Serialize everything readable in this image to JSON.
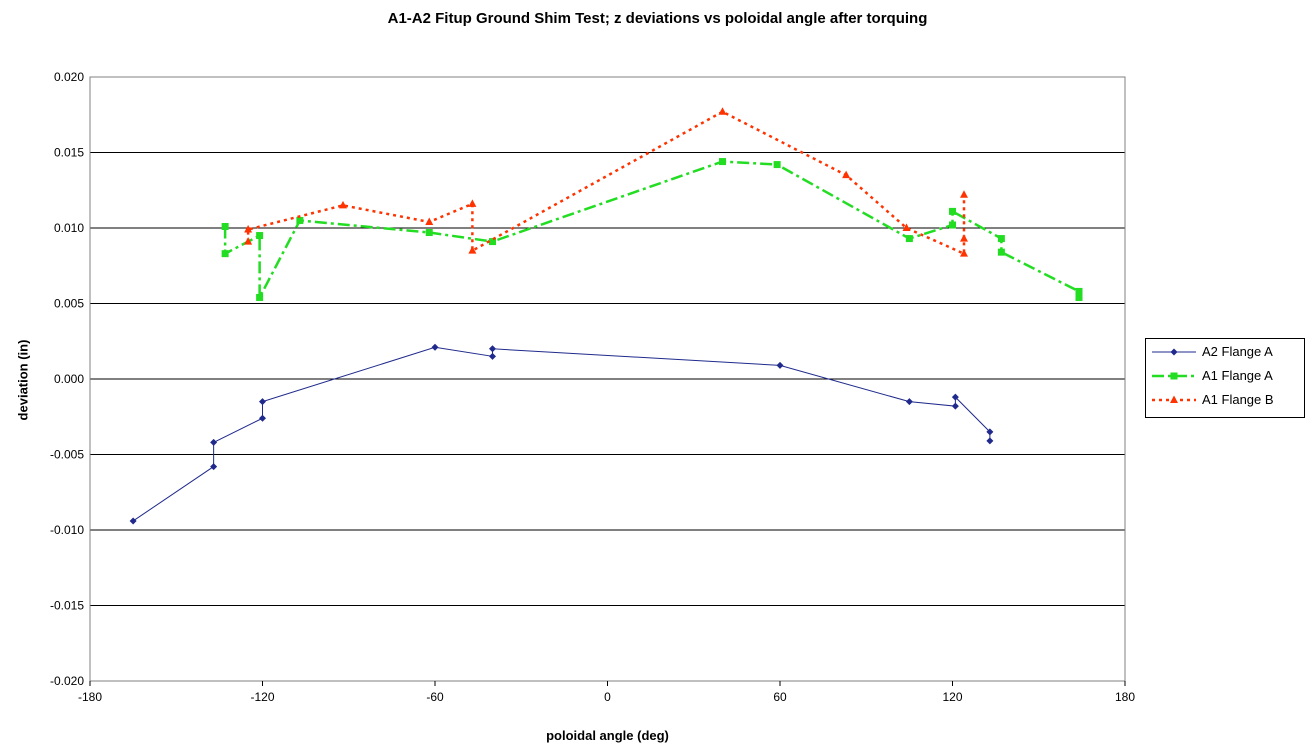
{
  "chart_data": {
    "type": "line",
    "title": "A1-A2 Fitup Ground Shim Test; z deviations vs poloidal angle after torquing",
    "xlabel": "poloidal angle (deg)",
    "ylabel": "deviation (in)",
    "xlim": [
      -180,
      180
    ],
    "ylim": [
      -0.02,
      0.02
    ],
    "x_ticks": [
      -180,
      -120,
      -60,
      0,
      60,
      120,
      180
    ],
    "x_tick_labels": [
      "-180",
      "-120",
      "-60",
      "0",
      "60",
      "120",
      "180"
    ],
    "y_ticks": [
      0.02,
      0.015,
      0.01,
      0.005,
      0,
      -0.005,
      -0.01,
      -0.015,
      -0.02
    ],
    "y_tick_labels": [
      "0.020",
      "0.015",
      "0.010",
      "0.005",
      "0.000",
      "-0.005",
      "-0.010",
      "-0.015",
      "-0.020"
    ],
    "grid": "horizontal",
    "legend_position": "right",
    "series": [
      {
        "name": "A2 Flange A",
        "color": "#1f2a8c",
        "line_style": "solid",
        "marker": "diamond",
        "points": [
          [
            -165,
            -0.0094
          ],
          [
            -137,
            -0.0058
          ],
          [
            -137,
            -0.0042
          ],
          [
            -120,
            -0.0026
          ],
          [
            -120,
            -0.0015
          ],
          [
            -60,
            0.0021
          ],
          [
            -40,
            0.0015
          ],
          [
            -40,
            0.002
          ],
          [
            60,
            0.0009
          ],
          [
            105,
            -0.0015
          ],
          [
            121,
            -0.0018
          ],
          [
            121,
            -0.0012
          ],
          [
            133,
            -0.0035
          ],
          [
            133,
            -0.0041
          ]
        ]
      },
      {
        "name": "A1 Flange A",
        "color": "#22dd22",
        "line_style": "dashdot",
        "marker": "square",
        "points": [
          [
            -133,
            0.0101
          ],
          [
            -133,
            0.0083
          ],
          [
            -121,
            0.0095
          ],
          [
            -121,
            0.0054
          ],
          [
            -107,
            0.0105
          ],
          [
            -62,
            0.0097
          ],
          [
            -40,
            0.0091
          ],
          [
            40,
            0.0144
          ],
          [
            59,
            0.0142
          ],
          [
            105,
            0.0093
          ],
          [
            120,
            0.0102
          ],
          [
            120,
            0.0111
          ],
          [
            137,
            0.0093
          ],
          [
            137,
            0.0084
          ],
          [
            164,
            0.0058
          ],
          [
            164,
            0.0054
          ]
        ]
      },
      {
        "name": "A1 Flange B",
        "color": "#ff3300",
        "line_style": "dotted",
        "marker": "triangle",
        "points": [
          [
            -125,
            0.0091
          ],
          [
            -125,
            0.0099
          ],
          [
            -92,
            0.0115
          ],
          [
            -62,
            0.0104
          ],
          [
            -47,
            0.0116
          ],
          [
            -47,
            0.0085
          ],
          [
            40,
            0.0177
          ],
          [
            83,
            0.0135
          ],
          [
            104,
            0.01
          ],
          [
            124,
            0.0083
          ],
          [
            124,
            0.0122
          ],
          [
            124,
            0.0093
          ]
        ]
      }
    ]
  }
}
